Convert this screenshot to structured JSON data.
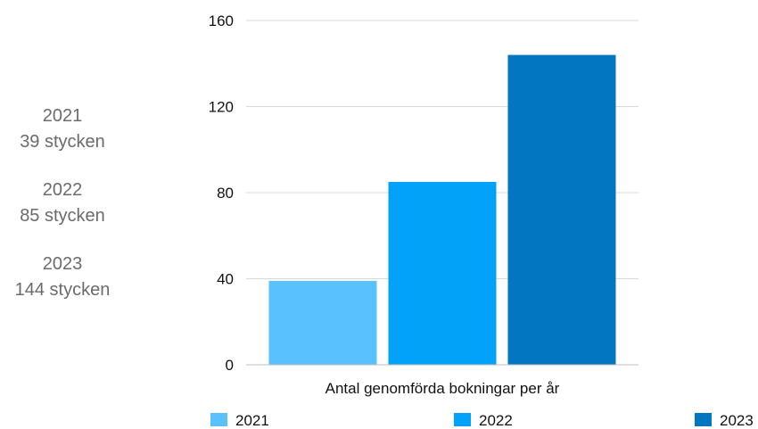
{
  "side_summary": [
    {
      "year": "2021",
      "count": "39 stycken"
    },
    {
      "year": "2022",
      "count": "85 stycken"
    },
    {
      "year": "2023",
      "count": "144 stycken"
    }
  ],
  "chart_data": {
    "type": "bar",
    "xlabel": "Antal genomförda bokningar per år",
    "ylabel": "",
    "ylim": [
      0,
      160
    ],
    "yticks": [
      0,
      40,
      80,
      120,
      160
    ],
    "grid": true,
    "legend_position": "bottom",
    "categories": [
      "Antal genomförda bokningar per år"
    ],
    "series": [
      {
        "name": "2021",
        "values": [
          39
        ],
        "color": "#5ac1ff"
      },
      {
        "name": "2022",
        "values": [
          85
        ],
        "color": "#03a2f9"
      },
      {
        "name": "2023",
        "values": [
          144
        ],
        "color": "#0276c0"
      }
    ]
  }
}
